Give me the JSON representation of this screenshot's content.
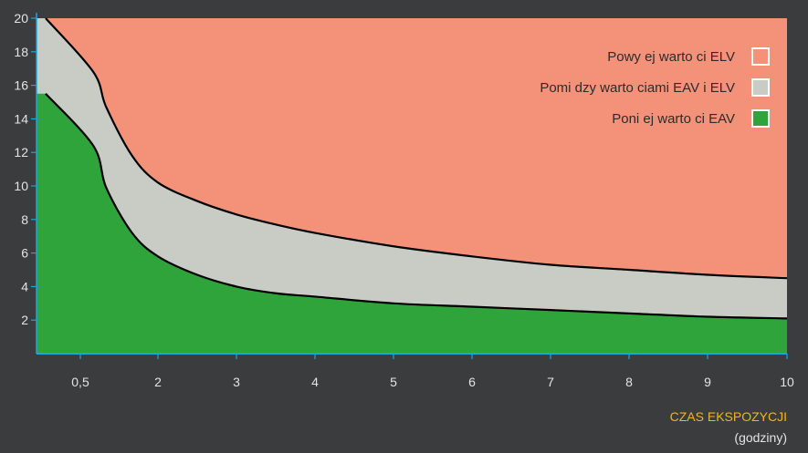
{
  "chart_data": {
    "type": "area",
    "title": "",
    "xlabel": "CZAS EKSPOZYCJI",
    "xlabel_unit": "(godziny)",
    "ylabel": "",
    "x_ticks": [
      "0,5",
      "2",
      "3",
      "4",
      "5",
      "6",
      "7",
      "8",
      "9",
      "10"
    ],
    "y_ticks": [
      "2",
      "4",
      "6",
      "8",
      "10",
      "12",
      "14",
      "16",
      "18",
      "20"
    ],
    "xlim": [
      0.5,
      10
    ],
    "ylim": [
      0,
      20
    ],
    "grid": false,
    "legend_position": "top-right",
    "series": [
      {
        "name": "Powy ej warto ci ELV",
        "color": "#f49279",
        "legend_swatch": "#f49279",
        "x": [
          0.5,
          0.75,
          1,
          1.5,
          2,
          2.5,
          3,
          3.5,
          4,
          5,
          6,
          7,
          8,
          9,
          10
        ],
        "values": [
          20,
          20,
          20,
          20,
          20,
          20,
          20,
          20,
          20,
          20,
          20,
          20,
          20,
          20,
          20
        ]
      },
      {
        "name": "Pomi dzy warto ciami EAV i ELV",
        "color": "#c9ccc4",
        "legend_swatch": "#c9ccc4",
        "x": [
          0.5,
          0.75,
          1,
          1.5,
          2,
          2.5,
          3,
          3.5,
          4,
          5,
          6,
          7,
          8,
          9,
          10
        ],
        "values": [
          20,
          16.8,
          14.7,
          11.8,
          10.2,
          9.1,
          8.3,
          7.7,
          7.2,
          6.4,
          5.8,
          5.3,
          5.0,
          4.7,
          4.5
        ]
      },
      {
        "name": "Poni ej warto ci EAV",
        "color": "#2ea43a",
        "legend_swatch": "#2ea43a",
        "x": [
          0.5,
          0.75,
          1,
          1.5,
          2,
          2.5,
          3,
          3.5,
          4,
          5,
          6,
          7,
          8,
          9,
          10
        ],
        "values": [
          15.5,
          12.4,
          9.9,
          7.2,
          5.8,
          4.7,
          4.0,
          3.6,
          3.4,
          3.0,
          2.8,
          2.6,
          2.4,
          2.2,
          2.1
        ]
      }
    ]
  },
  "colors": {
    "background": "#3a3c3e",
    "axis": "#1aa7e0",
    "tick_label": "#e4e4e4",
    "xlabel": "#f2b51b",
    "boundary_line": "#000000"
  }
}
